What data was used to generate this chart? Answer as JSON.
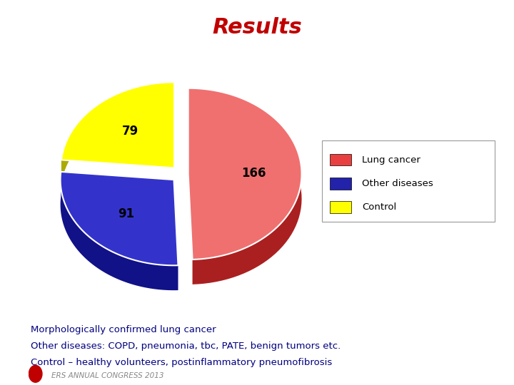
{
  "title": "Results",
  "title_color": "#C00000",
  "title_fontsize": 22,
  "slices": [
    166,
    91,
    79
  ],
  "labels": [
    "Lung cancer",
    "Other diseases",
    "Control"
  ],
  "colors_top": [
    "#F07070",
    "#3333CC",
    "#FFFF00"
  ],
  "colors_side": [
    "#AA2020",
    "#111188",
    "#AAAA00"
  ],
  "legend_colors": [
    "#E84040",
    "#2222AA",
    "#FFFF00"
  ],
  "legend_labels": [
    "Lung cancer",
    "Other diseases",
    "Control"
  ],
  "footnote_lines": [
    "Morphologically confirmed lung cancer",
    "Other diseases: COPD, pneumonia, tbc, PATE, benign tumors etc.",
    "Control – healthy volunteers, postinflammatory pneumofibrosis"
  ],
  "footnote_color": "#000080",
  "footnote_fontsize": 9.5,
  "bg_color": "#FFFFFF",
  "footer_text": "ERS ANNUAL CONGRESS 2013",
  "footer_color": "#888888"
}
